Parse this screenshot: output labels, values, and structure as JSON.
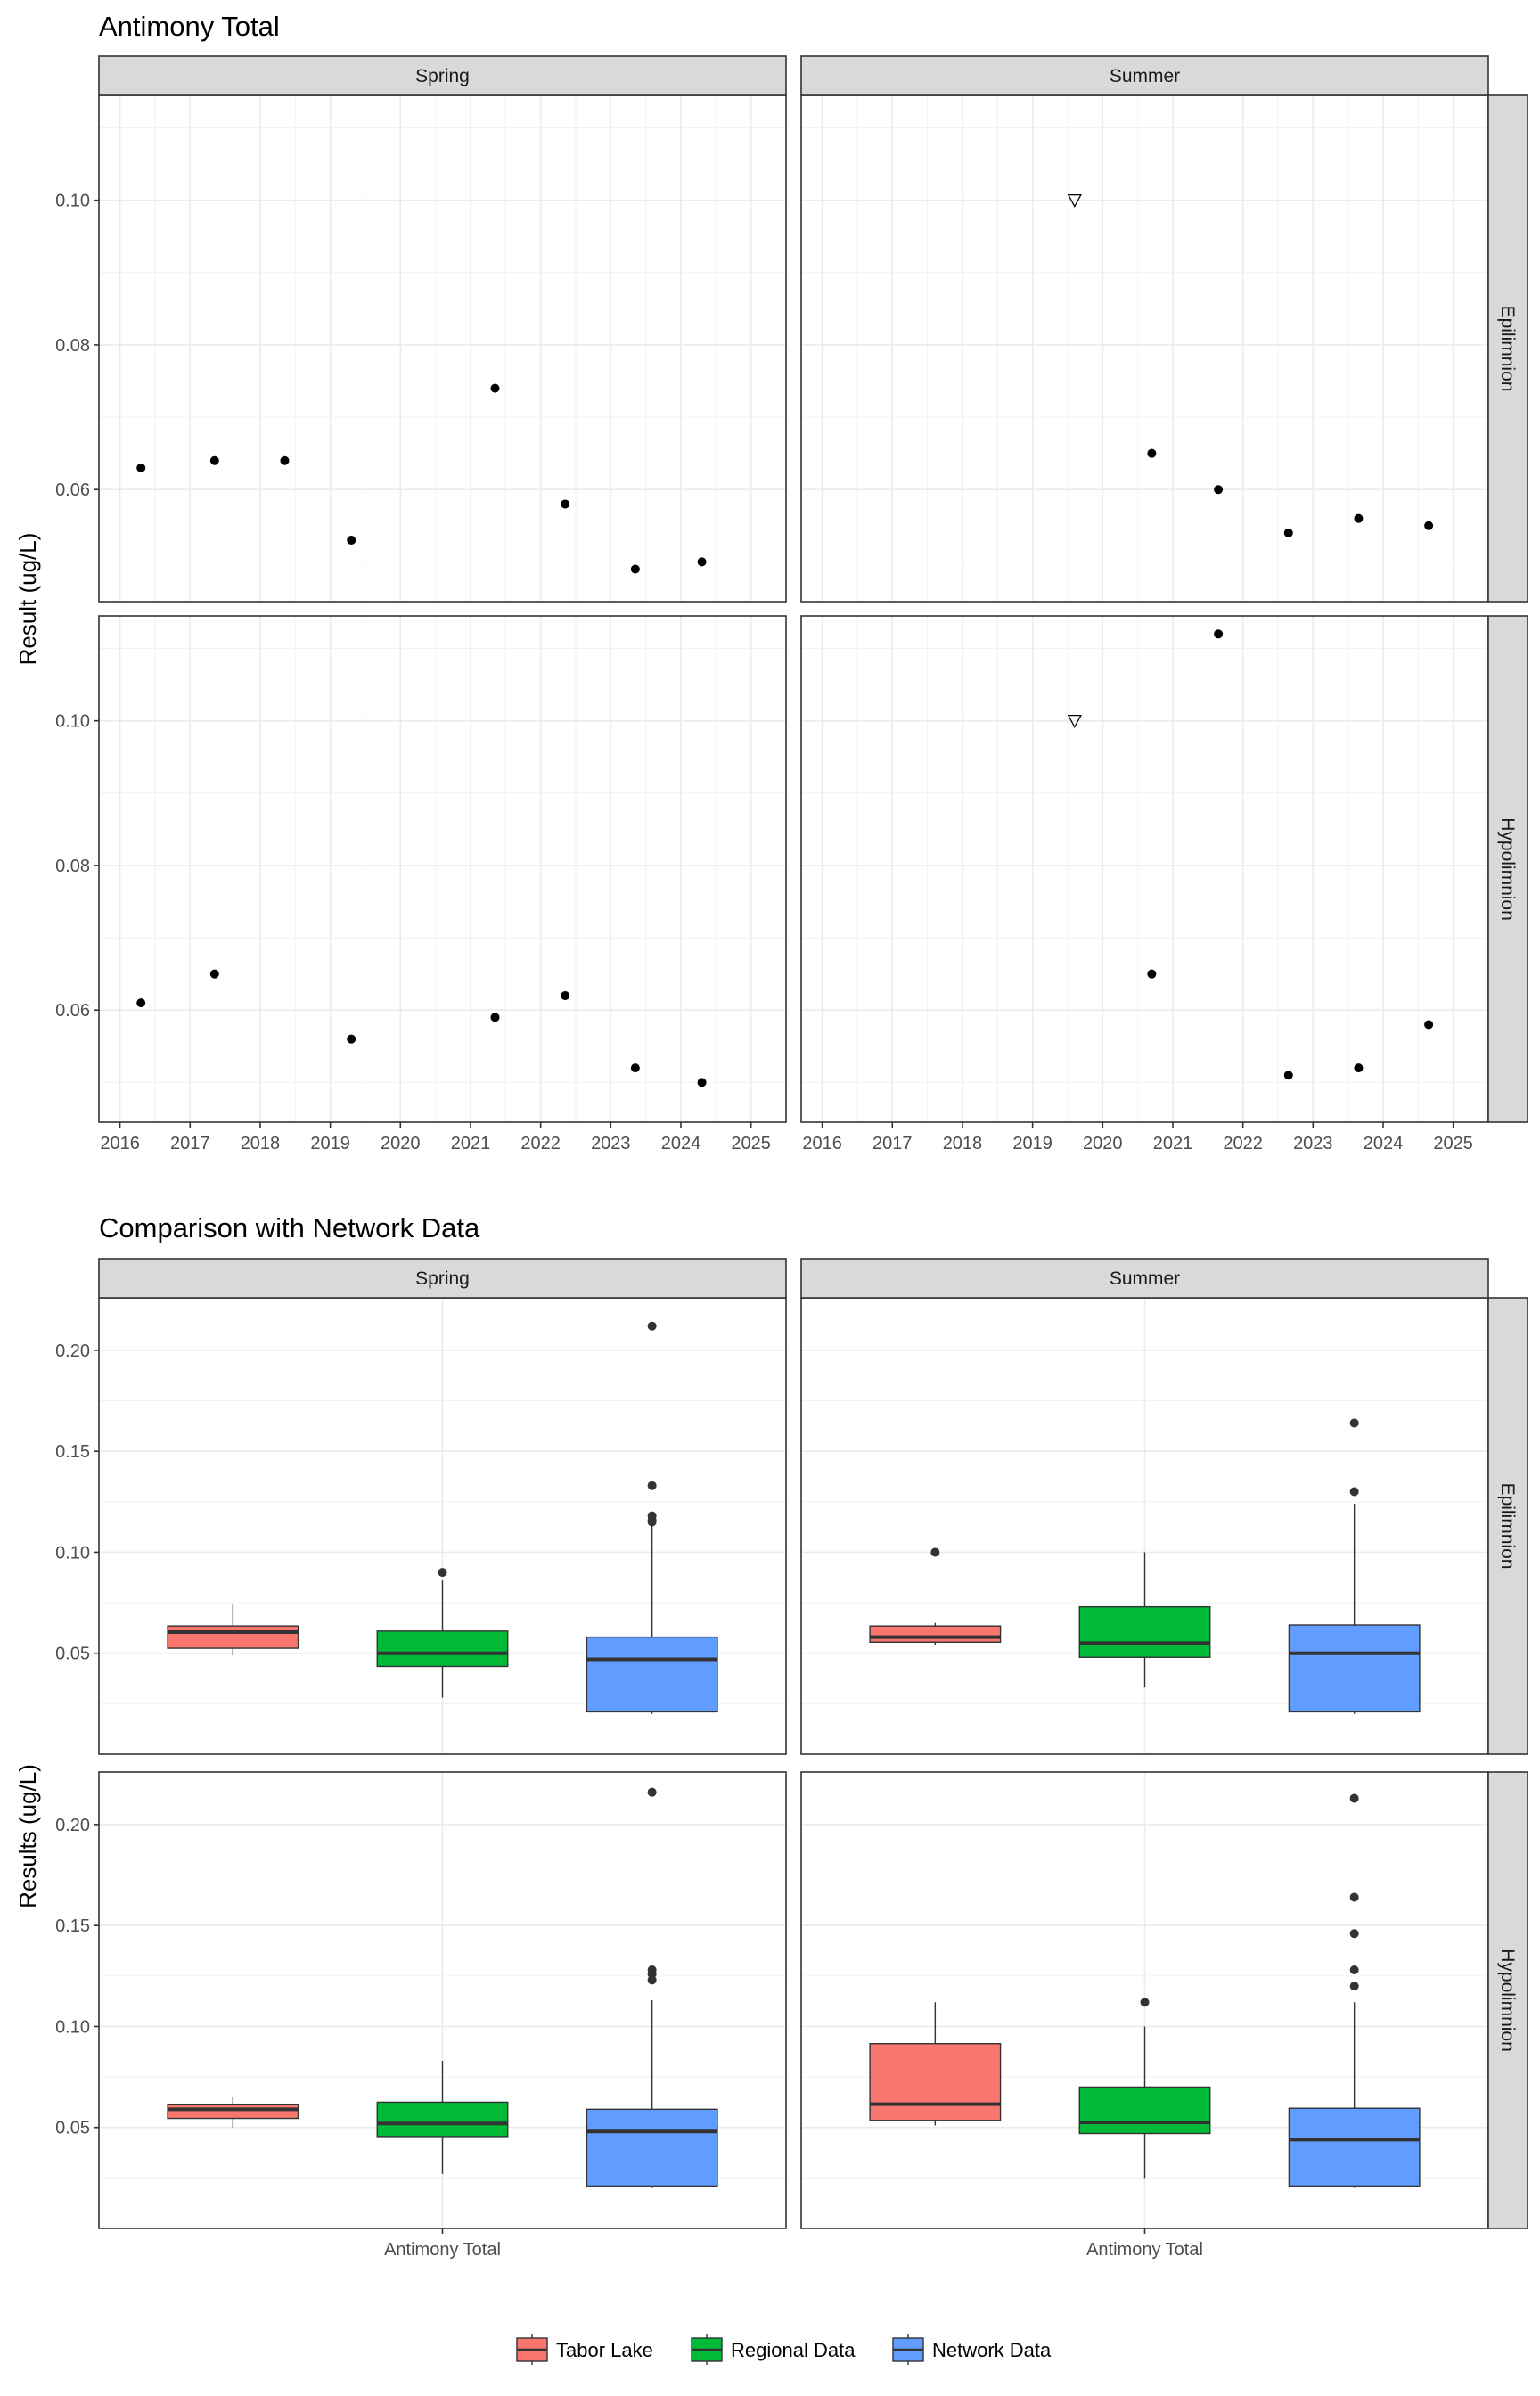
{
  "chart_data": [
    {
      "type": "scatter",
      "title": "Antimony Total",
      "ylabel": "Result (ug/L)",
      "xlabel": "",
      "facet_cols": [
        "Spring",
        "Summer"
      ],
      "facet_rows": [
        "Epilimnion",
        "Hypolimnion"
      ],
      "x_ticks": [
        "2016",
        "2017",
        "2018",
        "2019",
        "2020",
        "2021",
        "2022",
        "2023",
        "2024",
        "2025"
      ],
      "xlim": [
        2015.7,
        2025.5
      ],
      "y_ticks": [
        "0.06",
        "0.08",
        "0.10"
      ],
      "ylim": [
        0.0445,
        0.1145
      ],
      "grid": true,
      "panels": [
        {
          "col": "Spring",
          "row": "Epilimnion",
          "points": [
            {
              "x": 2016.3,
              "y": 0.063,
              "shape": "dot"
            },
            {
              "x": 2017.35,
              "y": 0.064,
              "shape": "dot"
            },
            {
              "x": 2018.35,
              "y": 0.064,
              "shape": "dot"
            },
            {
              "x": 2019.3,
              "y": 0.053,
              "shape": "dot"
            },
            {
              "x": 2021.35,
              "y": 0.074,
              "shape": "dot"
            },
            {
              "x": 2022.35,
              "y": 0.058,
              "shape": "dot"
            },
            {
              "x": 2023.35,
              "y": 0.049,
              "shape": "dot"
            },
            {
              "x": 2024.3,
              "y": 0.05,
              "shape": "dot"
            }
          ]
        },
        {
          "col": "Summer",
          "row": "Epilimnion",
          "points": [
            {
              "x": 2019.6,
              "y": 0.1,
              "shape": "triangle-down-open"
            },
            {
              "x": 2020.7,
              "y": 0.065,
              "shape": "dot"
            },
            {
              "x": 2021.65,
              "y": 0.06,
              "shape": "dot"
            },
            {
              "x": 2022.65,
              "y": 0.054,
              "shape": "dot"
            },
            {
              "x": 2023.65,
              "y": 0.056,
              "shape": "dot"
            },
            {
              "x": 2024.65,
              "y": 0.055,
              "shape": "dot"
            }
          ]
        },
        {
          "col": "Spring",
          "row": "Hypolimnion",
          "points": [
            {
              "x": 2016.3,
              "y": 0.061,
              "shape": "dot"
            },
            {
              "x": 2017.35,
              "y": 0.065,
              "shape": "dot"
            },
            {
              "x": 2019.3,
              "y": 0.056,
              "shape": "dot"
            },
            {
              "x": 2021.35,
              "y": 0.059,
              "shape": "dot"
            },
            {
              "x": 2022.35,
              "y": 0.062,
              "shape": "dot"
            },
            {
              "x": 2023.35,
              "y": 0.052,
              "shape": "dot"
            },
            {
              "x": 2024.3,
              "y": 0.05,
              "shape": "dot"
            }
          ]
        },
        {
          "col": "Summer",
          "row": "Hypolimnion",
          "points": [
            {
              "x": 2019.6,
              "y": 0.1,
              "shape": "triangle-down-open"
            },
            {
              "x": 2020.7,
              "y": 0.065,
              "shape": "dot"
            },
            {
              "x": 2021.65,
              "y": 0.112,
              "shape": "dot"
            },
            {
              "x": 2022.65,
              "y": 0.051,
              "shape": "dot"
            },
            {
              "x": 2023.65,
              "y": 0.052,
              "shape": "dot"
            },
            {
              "x": 2024.65,
              "y": 0.058,
              "shape": "dot"
            }
          ]
        }
      ]
    },
    {
      "type": "box",
      "title": "Comparison with Network Data",
      "ylabel": "Results (ug/L)",
      "xlabel": "",
      "x_category": "Antimony Total",
      "facet_cols": [
        "Spring",
        "Summer"
      ],
      "facet_rows": [
        "Epilimnion",
        "Hypolimnion"
      ],
      "y_ticks": [
        "0.05",
        "0.10",
        "0.15",
        "0.20"
      ],
      "ylim": [
        0.0,
        0.226
      ],
      "grid": true,
      "legend_position": "bottom",
      "groups": [
        {
          "name": "Tabor Lake",
          "color": "#F8766D"
        },
        {
          "name": "Regional Data",
          "color": "#00BA38"
        },
        {
          "name": "Network Data",
          "color": "#619CFF"
        }
      ],
      "panels": [
        {
          "col": "Spring",
          "row": "Epilimnion",
          "boxes": [
            {
              "group": "Tabor Lake",
              "min": 0.049,
              "q1": 0.0525,
              "median": 0.0605,
              "q3": 0.0635,
              "max": 0.074,
              "outliers": []
            },
            {
              "group": "Regional Data",
              "min": 0.028,
              "q1": 0.0435,
              "median": 0.05,
              "q3": 0.061,
              "max": 0.086,
              "outliers": [
                0.09
              ]
            },
            {
              "group": "Network Data",
              "min": 0.02,
              "q1": 0.021,
              "median": 0.047,
              "q3": 0.058,
              "max": 0.113,
              "outliers": [
                0.212,
                0.133,
                0.118,
                0.116,
                0.115
              ]
            }
          ]
        },
        {
          "col": "Summer",
          "row": "Epilimnion",
          "boxes": [
            {
              "group": "Tabor Lake",
              "min": 0.054,
              "q1": 0.0555,
              "median": 0.058,
              "q3": 0.0635,
              "max": 0.065,
              "outliers": [
                0.1
              ]
            },
            {
              "group": "Regional Data",
              "min": 0.033,
              "q1": 0.048,
              "median": 0.055,
              "q3": 0.073,
              "max": 0.1,
              "outliers": []
            },
            {
              "group": "Network Data",
              "min": 0.02,
              "q1": 0.021,
              "median": 0.05,
              "q3": 0.064,
              "max": 0.124,
              "outliers": [
                0.164,
                0.13
              ]
            }
          ]
        },
        {
          "col": "Spring",
          "row": "Hypolimnion",
          "boxes": [
            {
              "group": "Tabor Lake",
              "min": 0.05,
              "q1": 0.0545,
              "median": 0.059,
              "q3": 0.0615,
              "max": 0.065,
              "outliers": []
            },
            {
              "group": "Regional Data",
              "min": 0.027,
              "q1": 0.0455,
              "median": 0.052,
              "q3": 0.0625,
              "max": 0.083,
              "outliers": []
            },
            {
              "group": "Network Data",
              "min": 0.02,
              "q1": 0.021,
              "median": 0.048,
              "q3": 0.059,
              "max": 0.113,
              "outliers": [
                0.216,
                0.128,
                0.126,
                0.123
              ]
            }
          ]
        },
        {
          "col": "Summer",
          "row": "Hypolimnion",
          "boxes": [
            {
              "group": "Tabor Lake",
              "min": 0.051,
              "q1": 0.0535,
              "median": 0.0615,
              "q3": 0.0915,
              "max": 0.112,
              "outliers": []
            },
            {
              "group": "Regional Data",
              "min": 0.025,
              "q1": 0.047,
              "median": 0.0525,
              "q3": 0.07,
              "max": 0.1,
              "outliers": [
                0.112
              ]
            },
            {
              "group": "Network Data",
              "min": 0.02,
              "q1": 0.021,
              "median": 0.044,
              "q3": 0.0595,
              "max": 0.112,
              "outliers": [
                0.213,
                0.164,
                0.146,
                0.128,
                0.12
              ]
            }
          ]
        }
      ]
    }
  ]
}
